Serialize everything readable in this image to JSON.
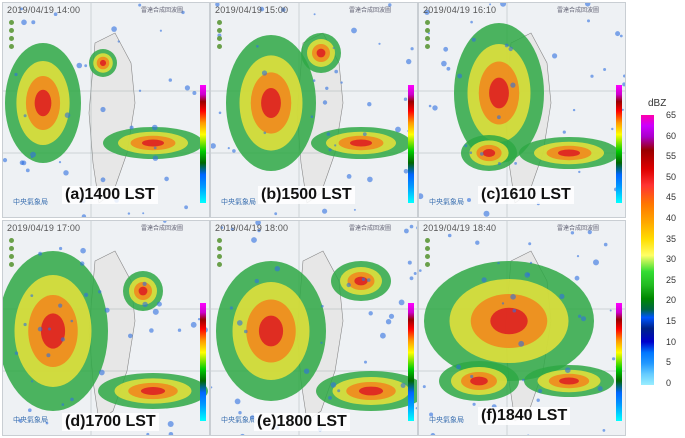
{
  "panels": [
    {
      "timestamp": "2019/04/19 14:00",
      "label": "(a)1400 LST"
    },
    {
      "timestamp": "2019/04/19 15:00",
      "label": "(b)1500 LST"
    },
    {
      "timestamp": "2019/04/19 16:10",
      "label": "(c)1610 LST"
    },
    {
      "timestamp": "2019/04/19 17:00",
      "label": "(d)1700 LST"
    },
    {
      "timestamp": "2019/04/19 18:00",
      "label": "(e)1800 LST"
    },
    {
      "timestamp": "2019/04/19 18:40",
      "label": "(f)1840 LST"
    }
  ],
  "panel_header": "雷達合成回波圖",
  "agency": "中央氣象局",
  "scale": {
    "unit": "dBZ",
    "ticks": [
      "65",
      "60",
      "55",
      "50",
      "45",
      "40",
      "35",
      "30",
      "25",
      "20",
      "15",
      "10",
      "5",
      "0"
    ]
  }
}
